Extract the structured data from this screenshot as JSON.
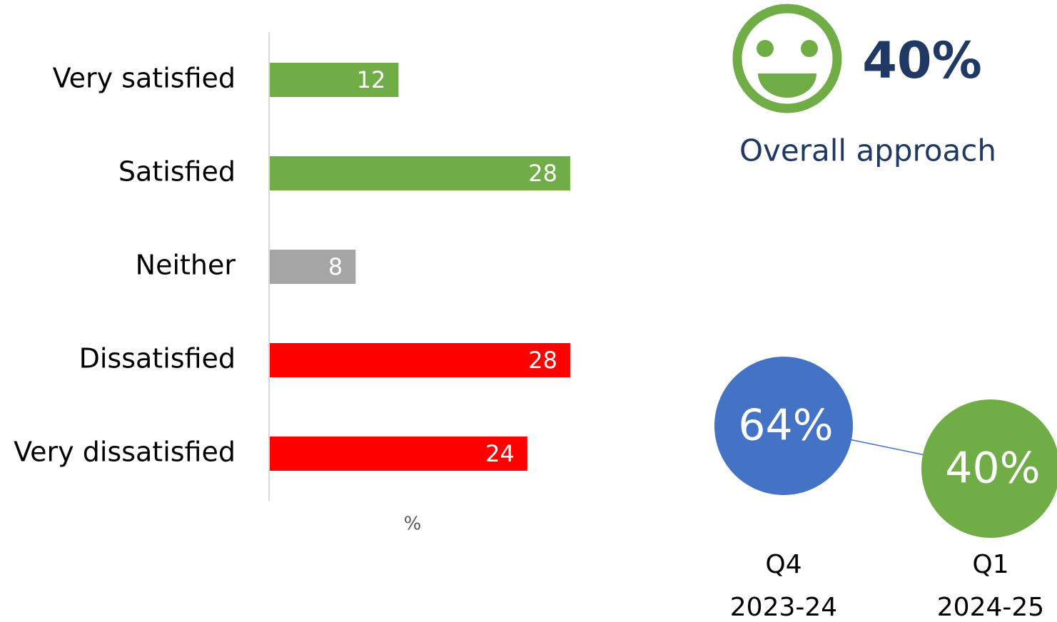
{
  "chart_data": [
    {
      "type": "hbar",
      "categories": [
        "Very satisfied",
        "Satisfied",
        "Neither",
        "Dissatisfied",
        "Very dissatisfied"
      ],
      "values": [
        12,
        28,
        8,
        28,
        24
      ],
      "colors": [
        "#70ad47",
        "#70ad47",
        "#a5a5a5",
        "#ff0000",
        "#ff0000"
      ],
      "xlabel": "%",
      "xlim": [
        0,
        30
      ]
    },
    {
      "type": "bubble",
      "categories": [
        "Q4",
        "Q1"
      ],
      "periods": [
        "2023-24",
        "2024-25"
      ],
      "values": [
        64,
        40
      ],
      "value_labels": [
        "64%",
        "40%"
      ],
      "colors": [
        "#4472c4",
        "#70ad47"
      ],
      "line_color": "#4472c4",
      "ylim": [
        0,
        100
      ]
    }
  ],
  "kpi": {
    "value": "40%",
    "label": "Overall approach"
  }
}
